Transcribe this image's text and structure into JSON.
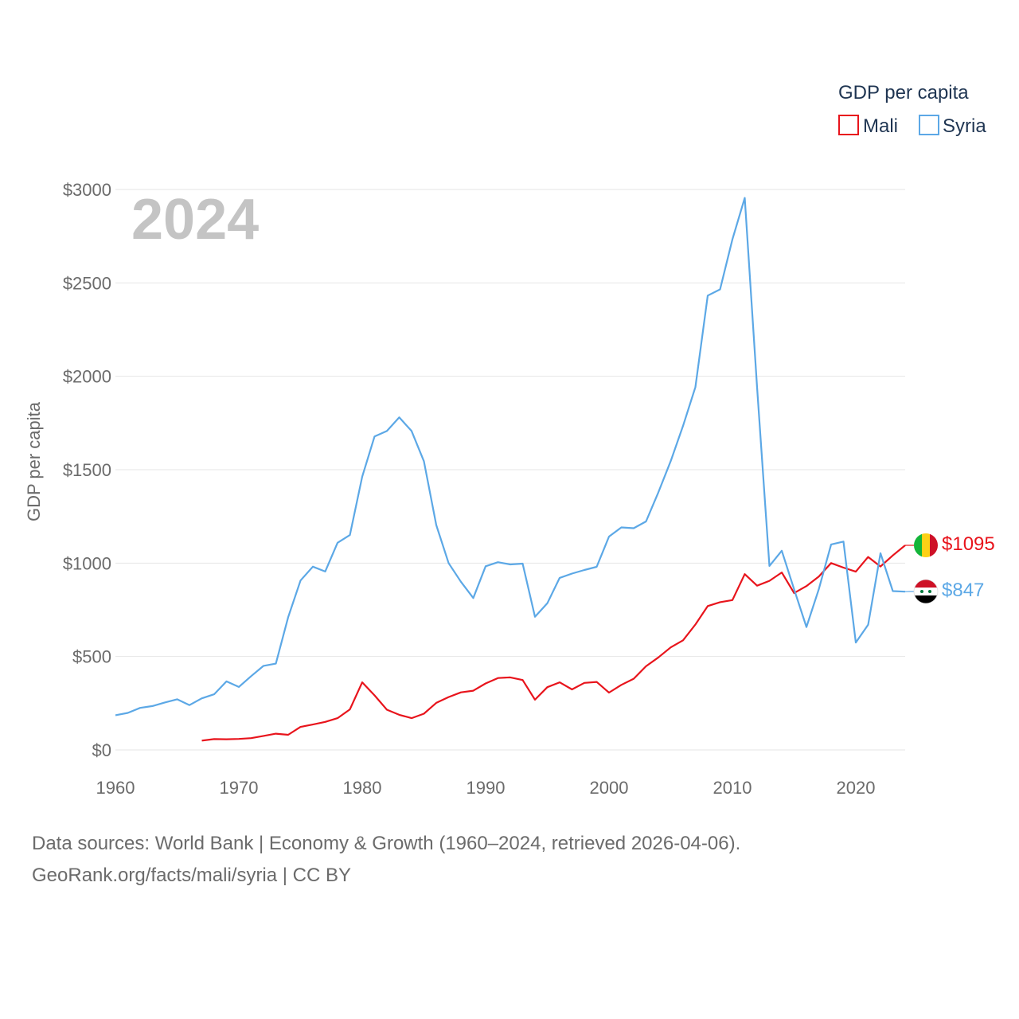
{
  "chart_data": {
    "type": "line",
    "title": "GDP per capita",
    "ylabel": "GDP per capita",
    "xlabel": "",
    "year_overlay": "2024",
    "xlim": [
      1960,
      2024
    ],
    "ylim": [
      0,
      3000
    ],
    "x_ticks": [
      "1960",
      "1970",
      "1980",
      "1990",
      "2000",
      "2010",
      "2020"
    ],
    "y_ticks": [
      "$0",
      "$500",
      "$1000",
      "$1500",
      "$2000",
      "$2500",
      "$3000"
    ],
    "legend_position": "top-right",
    "colors": {
      "Mali": "#e8141c",
      "Syria": "#5ca8e6"
    },
    "series": [
      {
        "name": "Mali",
        "end_label": "$1095",
        "points": [
          [
            1967,
            50
          ],
          [
            1968,
            58
          ],
          [
            1969,
            57
          ],
          [
            1970,
            59
          ],
          [
            1971,
            63
          ],
          [
            1972,
            75
          ],
          [
            1973,
            87
          ],
          [
            1974,
            81
          ],
          [
            1975,
            123
          ],
          [
            1976,
            136
          ],
          [
            1977,
            150
          ],
          [
            1978,
            170
          ],
          [
            1979,
            217
          ],
          [
            1980,
            362
          ],
          [
            1981,
            292
          ],
          [
            1982,
            215
          ],
          [
            1983,
            188
          ],
          [
            1984,
            170
          ],
          [
            1985,
            194
          ],
          [
            1986,
            252
          ],
          [
            1987,
            283
          ],
          [
            1988,
            308
          ],
          [
            1989,
            317
          ],
          [
            1990,
            356
          ],
          [
            1991,
            385
          ],
          [
            1992,
            388
          ],
          [
            1993,
            374
          ],
          [
            1994,
            269
          ],
          [
            1995,
            336
          ],
          [
            1996,
            362
          ],
          [
            1997,
            324
          ],
          [
            1998,
            359
          ],
          [
            1999,
            364
          ],
          [
            2000,
            307
          ],
          [
            2001,
            348
          ],
          [
            2002,
            381
          ],
          [
            2003,
            448
          ],
          [
            2004,
            495
          ],
          [
            2005,
            549
          ],
          [
            2006,
            587
          ],
          [
            2007,
            671
          ],
          [
            2008,
            770
          ],
          [
            2009,
            791
          ],
          [
            2010,
            802
          ],
          [
            2011,
            941
          ],
          [
            2012,
            879
          ],
          [
            2013,
            905
          ],
          [
            2014,
            950
          ],
          [
            2015,
            840
          ],
          [
            2016,
            877
          ],
          [
            2017,
            928
          ],
          [
            2018,
            1000
          ],
          [
            2019,
            976
          ],
          [
            2020,
            954
          ],
          [
            2021,
            1033
          ],
          [
            2022,
            982
          ],
          [
            2023,
            1041
          ],
          [
            2024,
            1095
          ]
        ]
      },
      {
        "name": "Syria",
        "end_label": "$847",
        "points": [
          [
            1960,
            186
          ],
          [
            1961,
            198
          ],
          [
            1962,
            225
          ],
          [
            1963,
            235
          ],
          [
            1964,
            254
          ],
          [
            1965,
            271
          ],
          [
            1966,
            240
          ],
          [
            1967,
            276
          ],
          [
            1968,
            298
          ],
          [
            1969,
            367
          ],
          [
            1970,
            337
          ],
          [
            1971,
            395
          ],
          [
            1972,
            450
          ],
          [
            1973,
            462
          ],
          [
            1974,
            711
          ],
          [
            1975,
            907
          ],
          [
            1976,
            981
          ],
          [
            1977,
            955
          ],
          [
            1978,
            1109
          ],
          [
            1979,
            1150
          ],
          [
            1980,
            1463
          ],
          [
            1981,
            1678
          ],
          [
            1982,
            1707
          ],
          [
            1983,
            1780
          ],
          [
            1984,
            1707
          ],
          [
            1985,
            1545
          ],
          [
            1986,
            1204
          ],
          [
            1987,
            1000
          ],
          [
            1988,
            900
          ],
          [
            1989,
            813
          ],
          [
            1990,
            983
          ],
          [
            1991,
            1005
          ],
          [
            1992,
            993
          ],
          [
            1993,
            997
          ],
          [
            1994,
            713
          ],
          [
            1995,
            785
          ],
          [
            1996,
            921
          ],
          [
            1997,
            944
          ],
          [
            1998,
            963
          ],
          [
            1999,
            980
          ],
          [
            2000,
            1142
          ],
          [
            2001,
            1191
          ],
          [
            2002,
            1187
          ],
          [
            2003,
            1223
          ],
          [
            2004,
            1379
          ],
          [
            2005,
            1546
          ],
          [
            2006,
            1735
          ],
          [
            2007,
            1942
          ],
          [
            2008,
            2432
          ],
          [
            2009,
            2465
          ],
          [
            2010,
            2733
          ],
          [
            2011,
            2955
          ],
          [
            2012,
            1940
          ],
          [
            2013,
            985
          ],
          [
            2014,
            1066
          ],
          [
            2015,
            860
          ],
          [
            2016,
            658
          ],
          [
            2017,
            860
          ],
          [
            2018,
            1100
          ],
          [
            2019,
            1115
          ],
          [
            2020,
            575
          ],
          [
            2021,
            670
          ],
          [
            2022,
            1053
          ],
          [
            2023,
            850
          ],
          [
            2024,
            847
          ]
        ]
      }
    ]
  },
  "footer": {
    "line1": "Data sources: World Bank | Economy & Growth (1960–2024, retrieved 2026-04-06).",
    "line2": "GeoRank.org/facts/mali/syria | CC BY"
  }
}
